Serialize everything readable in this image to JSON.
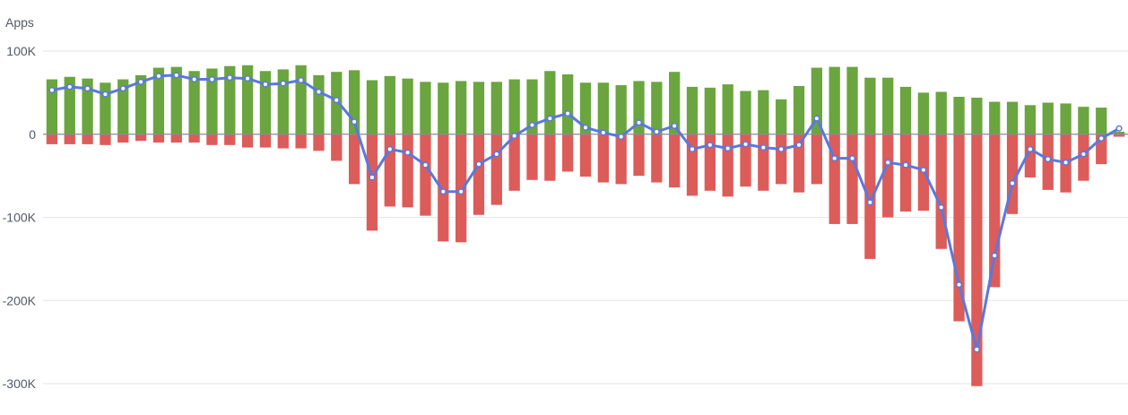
{
  "chart_data": {
    "type": "bar",
    "ylabel": "Apps",
    "ylim": [
      -300000,
      100000
    ],
    "yticks": [
      {
        "value": 100000,
        "label": "100K"
      },
      {
        "value": 0,
        "label": "0"
      },
      {
        "value": -100000,
        "label": "-100K"
      },
      {
        "value": -200000,
        "label": "-200K"
      },
      {
        "value": -300000,
        "label": "-300K"
      }
    ],
    "grid": true,
    "colors": {
      "positive": "#6aa53f",
      "negative": "#dc5c5a",
      "line": "#5b78dc",
      "grid": "#e3e5ea",
      "zero": "#8a8d96"
    },
    "series": [
      {
        "type": "bar",
        "values": [
          66000,
          69000,
          67000,
          62000,
          66000,
          71000,
          80000,
          81000,
          76000,
          79000,
          82000,
          83000,
          76000,
          78000,
          83000,
          71000,
          75000,
          77000,
          65000,
          70000,
          67000,
          63000,
          62000,
          64000,
          63000,
          63000,
          66000,
          66000,
          76000,
          72000,
          62000,
          62000,
          59000,
          64000,
          63000,
          75000,
          57000,
          56000,
          60000,
          52000,
          53000,
          42000,
          58000,
          80000,
          81000,
          81000,
          68000,
          68000,
          57000,
          50000,
          51000,
          45000,
          44000,
          39000,
          39000,
          35000,
          38000,
          37000,
          33000,
          32000,
          3000
        ]
      },
      {
        "type": "bar",
        "values": [
          -12000,
          -12000,
          -12000,
          -13000,
          -10000,
          -8000,
          -10000,
          -10000,
          -10000,
          -13000,
          -13000,
          -16000,
          -16000,
          -17000,
          -17000,
          -20000,
          -32000,
          -60000,
          -116000,
          -87000,
          -88000,
          -98000,
          -129000,
          -130000,
          -97000,
          -85000,
          -68000,
          -55000,
          -56000,
          -45000,
          -51000,
          -58000,
          -60000,
          -50000,
          -58000,
          -64000,
          -74000,
          -68000,
          -75000,
          -63000,
          -68000,
          -60000,
          -70000,
          -60000,
          -108000,
          -108000,
          -150000,
          -100000,
          -93000,
          -92000,
          -138000,
          -225000,
          -303000,
          -184000,
          -96000,
          -52000,
          -67000,
          -70000,
          -56000,
          -36000,
          -3000
        ]
      },
      {
        "type": "line",
        "values": [
          53000,
          57000,
          55000,
          48000,
          55000,
          63000,
          70000,
          71000,
          66000,
          66000,
          68000,
          67000,
          60000,
          61000,
          65000,
          51000,
          41000,
          15000,
          -52000,
          -18000,
          -22000,
          -37000,
          -69000,
          -69000,
          -36000,
          -24000,
          -2000,
          11000,
          19000,
          25000,
          8000,
          2000,
          -3000,
          14000,
          3000,
          10000,
          -18000,
          -13000,
          -17000,
          -12000,
          -16000,
          -18000,
          -13000,
          19000,
          -29000,
          -29000,
          -82000,
          -34000,
          -37000,
          -43000,
          -88000,
          -181000,
          -259000,
          -146000,
          -59000,
          -18000,
          -30000,
          -34000,
          -24000,
          -5000,
          7000
        ]
      }
    ]
  }
}
